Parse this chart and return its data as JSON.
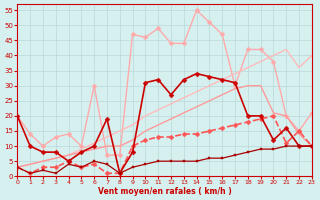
{
  "xlabel": "Vent moyen/en rafales ( km/h )",
  "background_color": "#d6f0f0",
  "grid_color": "#b8d8d8",
  "xlim": [
    0,
    23
  ],
  "ylim": [
    0,
    57
  ],
  "yticks": [
    0,
    5,
    10,
    15,
    20,
    25,
    30,
    35,
    40,
    45,
    50,
    55
  ],
  "xticks": [
    0,
    1,
    2,
    3,
    4,
    5,
    6,
    7,
    8,
    9,
    10,
    11,
    12,
    13,
    14,
    15,
    16,
    17,
    18,
    19,
    20,
    21,
    22,
    23
  ],
  "series": [
    {
      "x": [
        0,
        1,
        2,
        3,
        4,
        5,
        6,
        7,
        8,
        9,
        10,
        11,
        12,
        13,
        14,
        15,
        16,
        17,
        18,
        19,
        20,
        21,
        22,
        23
      ],
      "y": [
        20,
        14,
        10,
        13,
        14,
        10,
        30,
        7,
        7,
        47,
        46,
        49,
        44,
        44,
        55,
        51,
        47,
        30,
        42,
        42,
        38,
        20,
        15,
        21
      ],
      "color": "#ffaaaa",
      "lw": 1.0,
      "marker": "D",
      "ms": 2.5,
      "ls": "-"
    },
    {
      "x": [
        0,
        1,
        2,
        3,
        4,
        5,
        6,
        7,
        8,
        9,
        10,
        11,
        12,
        13,
        14,
        15,
        16,
        17,
        18,
        19,
        20,
        21,
        22,
        23
      ],
      "y": [
        3,
        4,
        5,
        6,
        7,
        9,
        11,
        13,
        15,
        17,
        20,
        22,
        24,
        26,
        28,
        30,
        32,
        34,
        36,
        38,
        40,
        42,
        36,
        40
      ],
      "color": "#ffbbbb",
      "lw": 1.0,
      "marker": null,
      "ms": 0,
      "ls": "-"
    },
    {
      "x": [
        0,
        1,
        2,
        3,
        4,
        5,
        6,
        7,
        8,
        9,
        10,
        11,
        12,
        13,
        14,
        15,
        16,
        17,
        18,
        19,
        20,
        21,
        22,
        23
      ],
      "y": [
        3,
        4,
        5,
        6,
        7,
        8,
        9,
        10,
        10,
        12,
        15,
        17,
        19,
        21,
        23,
        25,
        27,
        29,
        30,
        30,
        21,
        20,
        14,
        10
      ],
      "color": "#ff9999",
      "lw": 1.0,
      "marker": null,
      "ms": 0,
      "ls": "-"
    },
    {
      "x": [
        0,
        1,
        2,
        3,
        4,
        5,
        6,
        7,
        8,
        9,
        10,
        11,
        12,
        13,
        14,
        15,
        16,
        17,
        18,
        19,
        20,
        21,
        22,
        23
      ],
      "y": [
        3,
        1,
        3,
        3,
        5,
        3,
        4,
        1,
        1,
        10,
        12,
        13,
        13,
        14,
        14,
        15,
        16,
        17,
        18,
        19,
        20,
        11,
        15,
        10
      ],
      "color": "#ff5555",
      "lw": 1.2,
      "marker": "D",
      "ms": 2.5,
      "ls": "--"
    },
    {
      "x": [
        0,
        1,
        2,
        3,
        4,
        5,
        6,
        7,
        8,
        9,
        10,
        11,
        12,
        13,
        14,
        15,
        16,
        17,
        18,
        19,
        20,
        21,
        22,
        23
      ],
      "y": [
        20,
        10,
        8,
        8,
        5,
        8,
        10,
        19,
        1,
        8,
        31,
        32,
        27,
        32,
        34,
        33,
        32,
        31,
        20,
        20,
        12,
        16,
        10,
        10
      ],
      "color": "#cc0000",
      "lw": 1.2,
      "marker": "D",
      "ms": 2.5,
      "ls": "-"
    },
    {
      "x": [
        0,
        1,
        2,
        3,
        4,
        5,
        6,
        7,
        8,
        9,
        10,
        11,
        12,
        13,
        14,
        15,
        16,
        17,
        18,
        19,
        20,
        21,
        22,
        23
      ],
      "y": [
        3,
        1,
        2,
        1,
        4,
        3,
        5,
        4,
        1,
        3,
        4,
        5,
        5,
        5,
        5,
        6,
        6,
        7,
        8,
        9,
        9,
        10,
        10,
        10
      ],
      "color": "#aa0000",
      "lw": 0.9,
      "marker": "s",
      "ms": 2,
      "ls": "-"
    }
  ]
}
